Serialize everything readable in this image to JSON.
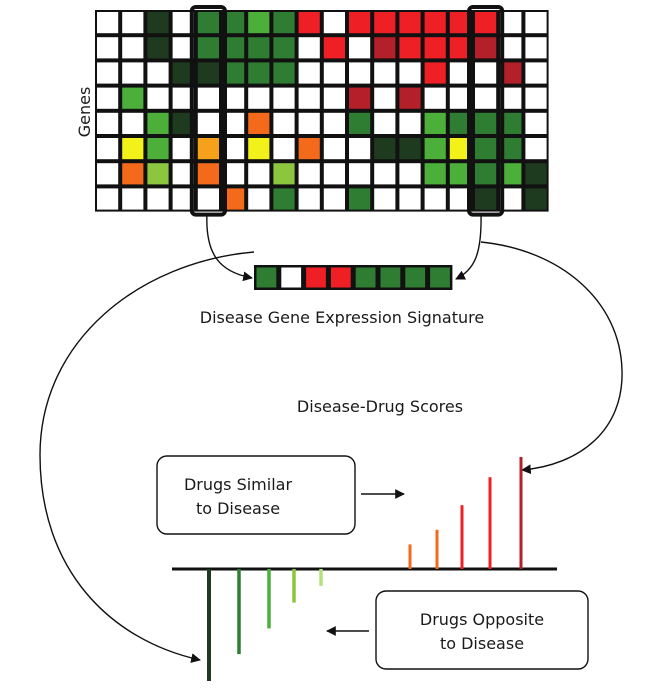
{
  "genes_label": "Genes",
  "signature_label": "Disease Gene Expression Signature",
  "scores_label": "Disease-Drug Scores",
  "similar_box": {
    "line1": "Drugs Similar",
    "line2": "to Disease"
  },
  "opposite_box": {
    "line1": "Drugs Opposite",
    "line2": "to Disease"
  },
  "colors": {
    "W": "#ffffff",
    "D": "#1f3b1f",
    "G": "#2e7d32",
    "L": "#4caf3a",
    "Y": "#f2f21a",
    "O": "#f5a21a",
    "N": "#f26a1a",
    "R": "#ee2026",
    "M": "#b3202a",
    "P": "#8cc63f"
  },
  "heatmap": [
    "WWDWGGLGRWRRRRRRWW",
    "WWDWGGGGWRWMRRRMWW",
    "WWWDDGGGWWWWWRWWMW",
    "WLWWWWWWWWMWMWWWWW",
    "WWLDWWNWWWGWWLGGGW",
    "WYLWOWYWNWWDDLYGGW",
    "WNPWNWWPWWWWWLLGLD",
    "WWWWWNWGWWGWWWWDWD"
  ],
  "highlight_columns": [
    4,
    15
  ],
  "signature": [
    "G",
    "W",
    "R",
    "R",
    "G",
    "G",
    "G",
    "G"
  ],
  "similar_scores": [
    {
      "value": 0.22,
      "color": "#f26a1a"
    },
    {
      "value": 0.35,
      "color": "#f26a1a"
    },
    {
      "value": 0.57,
      "color": "#ee2026"
    },
    {
      "value": 0.82,
      "color": "#ee2026"
    },
    {
      "value": 1.0,
      "color": "#b3202a"
    }
  ],
  "opposite_scores": [
    {
      "value": -1.0,
      "color": "#1f3b1f"
    },
    {
      "value": -0.76,
      "color": "#2e7d32"
    },
    {
      "value": -0.53,
      "color": "#4caf3a"
    },
    {
      "value": -0.3,
      "color": "#8cc63f"
    },
    {
      "value": -0.15,
      "color": "#b6e07a"
    }
  ]
}
